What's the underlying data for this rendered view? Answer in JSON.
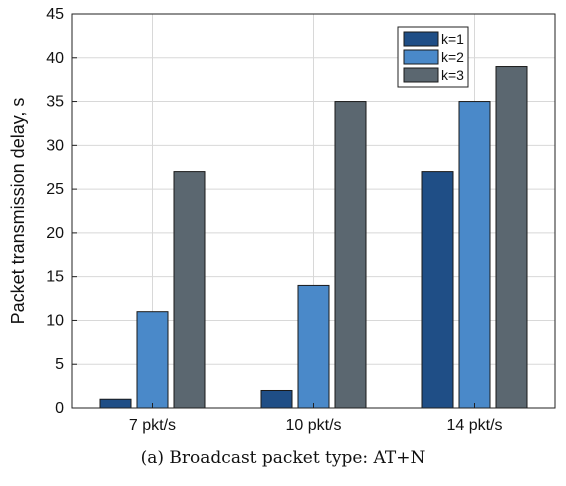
{
  "caption": "(a) Broadcast packet type: AT+N",
  "chart_data": {
    "type": "bar",
    "categories": [
      "7 pkt/s",
      "10 pkt/s",
      "14 pkt/s"
    ],
    "series": [
      {
        "name": "k=1",
        "values": [
          1,
          2,
          27
        ],
        "color": "#1f4e86"
      },
      {
        "name": "k=2",
        "values": [
          11,
          14,
          35
        ],
        "color": "#4a89c9"
      },
      {
        "name": "k=3",
        "values": [
          27,
          35,
          39
        ],
        "color": "#5b6770"
      }
    ],
    "title": "",
    "xlabel": "",
    "ylabel": "Packet transmission delay, s",
    "ylim": [
      0,
      45
    ],
    "yticks": [
      0,
      5,
      10,
      15,
      20,
      25,
      30,
      35,
      40,
      45
    ],
    "grid": true,
    "legend_position": "top-right"
  }
}
